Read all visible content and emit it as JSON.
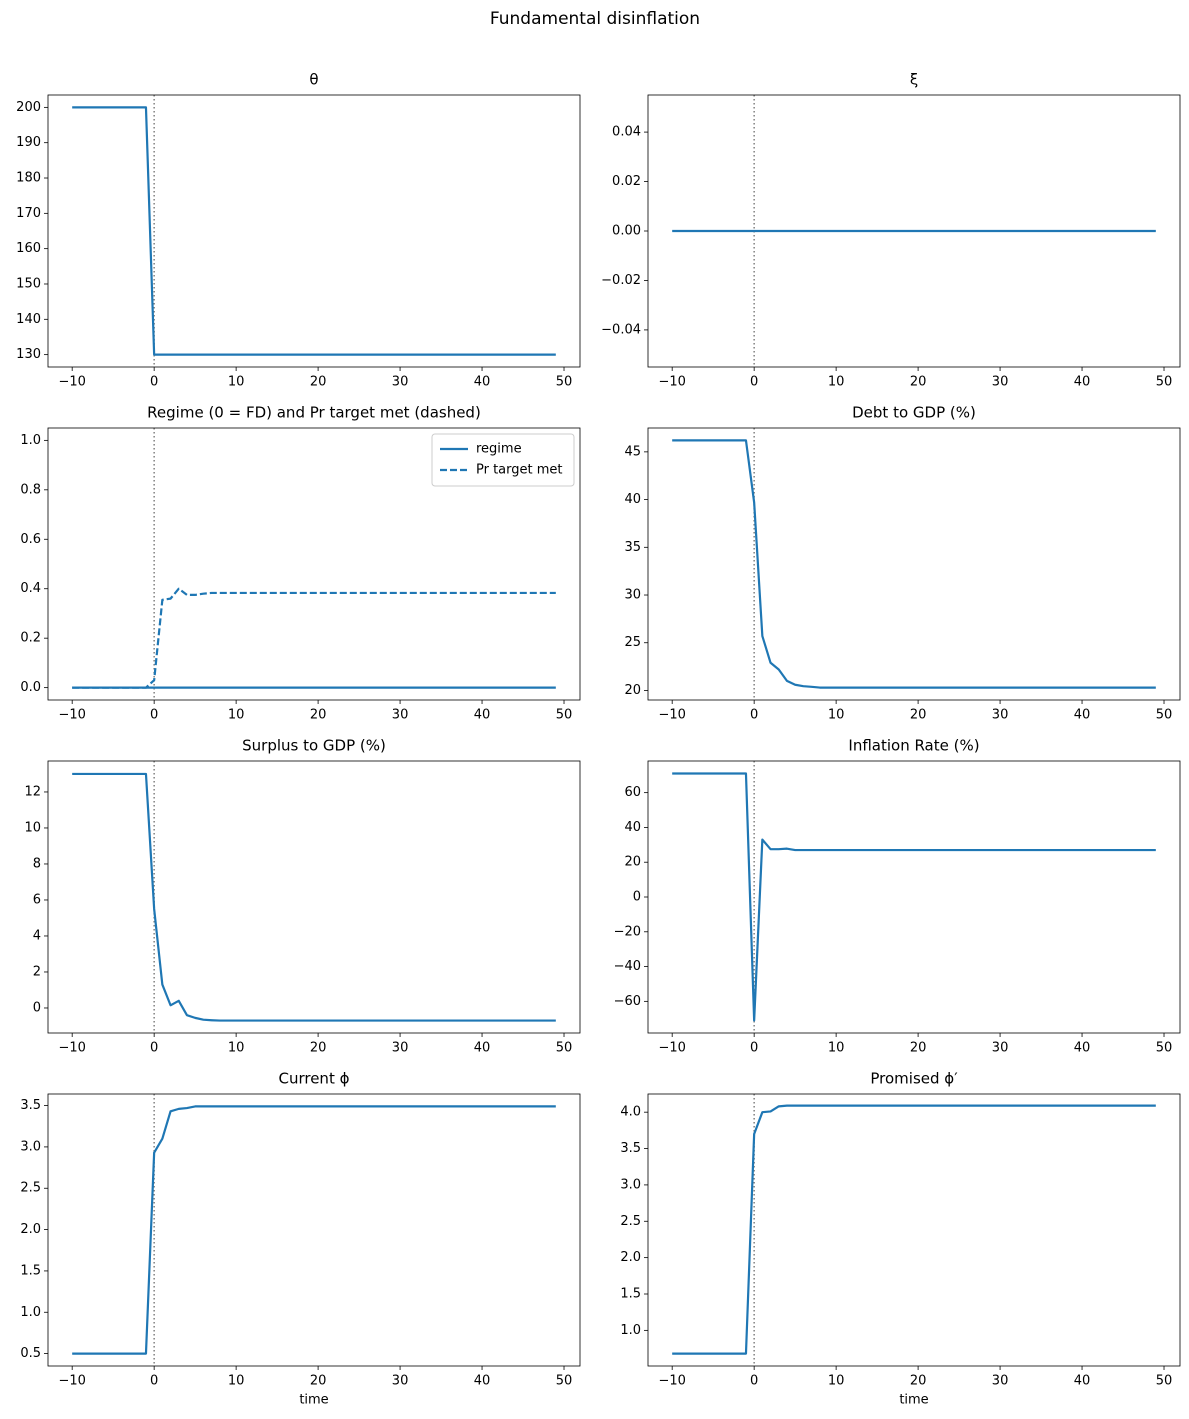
{
  "title": "Fundamental disinflation",
  "chart_data": [
    {
      "type": "line",
      "title": "θ",
      "color": "#1f77b4",
      "vline": 0,
      "x": [
        -10,
        -9,
        -8,
        -7,
        -6,
        -5,
        -4,
        -3,
        -2,
        -1,
        0,
        1,
        2,
        3,
        4,
        5,
        6,
        7,
        8,
        9,
        10,
        11,
        12,
        13,
        14,
        15,
        16,
        17,
        18,
        19,
        20,
        21,
        22,
        23,
        24,
        25,
        26,
        27,
        28,
        29,
        30,
        31,
        32,
        33,
        34,
        35,
        36,
        37,
        38,
        39,
        40,
        41,
        42,
        43,
        44,
        45,
        46,
        47,
        48,
        49
      ],
      "values": [
        200,
        200,
        200,
        200,
        200,
        200,
        200,
        200,
        200,
        200,
        130,
        130,
        130,
        130,
        130,
        130,
        130,
        130,
        130,
        130,
        130,
        130,
        130,
        130,
        130,
        130,
        130,
        130,
        130,
        130,
        130,
        130,
        130,
        130,
        130,
        130,
        130,
        130,
        130,
        130,
        130,
        130,
        130,
        130,
        130,
        130,
        130,
        130,
        130,
        130,
        130,
        130,
        130,
        130,
        130,
        130,
        130,
        130,
        130,
        130
      ],
      "xlim": [
        -12.95,
        51.95
      ],
      "xticks": [
        {
          "value": -10,
          "label": "−10"
        },
        0,
        10,
        20,
        30,
        40,
        50
      ],
      "ylim": [
        126.5,
        203.5
      ],
      "yticks": [
        130,
        140,
        150,
        160,
        170,
        180,
        190,
        200
      ]
    },
    {
      "type": "line",
      "title": "ξ",
      "color": "#1f77b4",
      "vline": 0,
      "x": [
        -10,
        -9,
        -8,
        -7,
        -6,
        -5,
        -4,
        -3,
        -2,
        -1,
        0,
        1,
        2,
        3,
        4,
        5,
        6,
        7,
        8,
        9,
        10,
        11,
        12,
        13,
        14,
        15,
        16,
        17,
        18,
        19,
        20,
        21,
        22,
        23,
        24,
        25,
        26,
        27,
        28,
        29,
        30,
        31,
        32,
        33,
        34,
        35,
        36,
        37,
        38,
        39,
        40,
        41,
        42,
        43,
        44,
        45,
        46,
        47,
        48,
        49
      ],
      "values": [
        0,
        0,
        0,
        0,
        0,
        0,
        0,
        0,
        0,
        0,
        0,
        0,
        0,
        0,
        0,
        0,
        0,
        0,
        0,
        0,
        0,
        0,
        0,
        0,
        0,
        0,
        0,
        0,
        0,
        0,
        0,
        0,
        0,
        0,
        0,
        0,
        0,
        0,
        0,
        0,
        0,
        0,
        0,
        0,
        0,
        0,
        0,
        0,
        0,
        0,
        0,
        0,
        0,
        0,
        0,
        0,
        0,
        0,
        0,
        0
      ],
      "xlim": [
        -12.95,
        51.95
      ],
      "xticks": [
        {
          "value": -10,
          "label": "−10"
        },
        0,
        10,
        20,
        30,
        40,
        50
      ],
      "ylim": [
        -0.055,
        0.055
      ],
      "yticks": [
        {
          "value": -0.04,
          "label": "−0.04"
        },
        {
          "value": -0.02,
          "label": "−0.02"
        },
        {
          "value": 0,
          "label": "0.00"
        },
        0.02,
        0.04
      ]
    },
    {
      "type": "line",
      "title": "Regime (0 = FD) and Pr target met (dashed)",
      "vline": 0,
      "legend": "upper right",
      "x": [
        -10,
        -9,
        -8,
        -7,
        -6,
        -5,
        -4,
        -3,
        -2,
        -1,
        0,
        1,
        2,
        3,
        4,
        5,
        6,
        7,
        8,
        9,
        10,
        11,
        12,
        13,
        14,
        15,
        16,
        17,
        18,
        19,
        20,
        21,
        22,
        23,
        24,
        25,
        26,
        27,
        28,
        29,
        30,
        31,
        32,
        33,
        34,
        35,
        36,
        37,
        38,
        39,
        40,
        41,
        42,
        43,
        44,
        45,
        46,
        47,
        48,
        49
      ],
      "series": [
        {
          "name": "regime",
          "color": "#1f77b4",
          "dash": false,
          "values": [
            0,
            0,
            0,
            0,
            0,
            0,
            0,
            0,
            0,
            0,
            0,
            0,
            0,
            0,
            0,
            0,
            0,
            0,
            0,
            0,
            0,
            0,
            0,
            0,
            0,
            0,
            0,
            0,
            0,
            0,
            0,
            0,
            0,
            0,
            0,
            0,
            0,
            0,
            0,
            0,
            0,
            0,
            0,
            0,
            0,
            0,
            0,
            0,
            0,
            0,
            0,
            0,
            0,
            0,
            0,
            0,
            0,
            0,
            0,
            0
          ]
        },
        {
          "name": "Pr target met",
          "color": "#1f77b4",
          "dash": true,
          "values": [
            0,
            0,
            0,
            0,
            0,
            0,
            0,
            0,
            0,
            0,
            0.03,
            0.355,
            0.36,
            0.4,
            0.375,
            0.375,
            0.38,
            0.383,
            0.383,
            0.383,
            0.383,
            0.383,
            0.383,
            0.383,
            0.383,
            0.383,
            0.383,
            0.383,
            0.383,
            0.383,
            0.383,
            0.383,
            0.383,
            0.383,
            0.383,
            0.383,
            0.383,
            0.383,
            0.383,
            0.383,
            0.383,
            0.383,
            0.383,
            0.383,
            0.383,
            0.383,
            0.383,
            0.383,
            0.383,
            0.383,
            0.383,
            0.383,
            0.383,
            0.383,
            0.383,
            0.383,
            0.383,
            0.383,
            0.383,
            0.383
          ]
        }
      ],
      "xlim": [
        -12.95,
        51.95
      ],
      "xticks": [
        {
          "value": -10,
          "label": "−10"
        },
        0,
        10,
        20,
        30,
        40,
        50
      ],
      "ylim": [
        -0.05,
        1.05
      ],
      "yticks": [
        {
          "value": 0,
          "label": "0.0"
        },
        0.2,
        0.4,
        0.6,
        0.8,
        {
          "value": 1,
          "label": "1.0"
        }
      ]
    },
    {
      "type": "line",
      "title": "Debt to GDP (%)",
      "color": "#1f77b4",
      "vline": 0,
      "x": [
        -10,
        -9,
        -8,
        -7,
        -6,
        -5,
        -4,
        -3,
        -2,
        -1,
        0,
        1,
        2,
        3,
        4,
        5,
        6,
        7,
        8,
        9,
        10,
        11,
        12,
        13,
        14,
        15,
        16,
        17,
        18,
        19,
        20,
        21,
        22,
        23,
        24,
        25,
        26,
        27,
        28,
        29,
        30,
        31,
        32,
        33,
        34,
        35,
        36,
        37,
        38,
        39,
        40,
        41,
        42,
        43,
        44,
        45,
        46,
        47,
        48,
        49
      ],
      "values": [
        46.2,
        46.2,
        46.2,
        46.2,
        46.2,
        46.2,
        46.2,
        46.2,
        46.2,
        46.2,
        39.7,
        25.7,
        22.9,
        22.2,
        21.0,
        20.6,
        20.45,
        20.38,
        20.3,
        20.3,
        20.3,
        20.3,
        20.3,
        20.3,
        20.3,
        20.3,
        20.3,
        20.3,
        20.3,
        20.3,
        20.3,
        20.3,
        20.3,
        20.3,
        20.3,
        20.3,
        20.3,
        20.3,
        20.3,
        20.3,
        20.3,
        20.3,
        20.3,
        20.3,
        20.3,
        20.3,
        20.3,
        20.3,
        20.3,
        20.3,
        20.3,
        20.3,
        20.3,
        20.3,
        20.3,
        20.3,
        20.3,
        20.3,
        20.3,
        20.3
      ],
      "xlim": [
        -12.95,
        51.95
      ],
      "xticks": [
        {
          "value": -10,
          "label": "−10"
        },
        0,
        10,
        20,
        30,
        40,
        50
      ],
      "ylim": [
        19.0,
        47.5
      ],
      "yticks": [
        20,
        25,
        30,
        35,
        40,
        45
      ]
    },
    {
      "type": "line",
      "title": "Surplus to GDP (%)",
      "color": "#1f77b4",
      "vline": 0,
      "x": [
        -10,
        -9,
        -8,
        -7,
        -6,
        -5,
        -4,
        -3,
        -2,
        -1,
        0,
        1,
        2,
        3,
        4,
        5,
        6,
        7,
        8,
        9,
        10,
        11,
        12,
        13,
        14,
        15,
        16,
        17,
        18,
        19,
        20,
        21,
        22,
        23,
        24,
        25,
        26,
        27,
        28,
        29,
        30,
        31,
        32,
        33,
        34,
        35,
        36,
        37,
        38,
        39,
        40,
        41,
        42,
        43,
        44,
        45,
        46,
        47,
        48,
        49
      ],
      "values": [
        13,
        13,
        13,
        13,
        13,
        13,
        13,
        13,
        13,
        13,
        5.5,
        1.3,
        0.15,
        0.4,
        -0.4,
        -0.55,
        -0.65,
        -0.68,
        -0.7,
        -0.7,
        -0.7,
        -0.7,
        -0.7,
        -0.7,
        -0.7,
        -0.7,
        -0.7,
        -0.7,
        -0.7,
        -0.7,
        -0.7,
        -0.7,
        -0.7,
        -0.7,
        -0.7,
        -0.7,
        -0.7,
        -0.7,
        -0.7,
        -0.7,
        -0.7,
        -0.7,
        -0.7,
        -0.7,
        -0.7,
        -0.7,
        -0.7,
        -0.7,
        -0.7,
        -0.7,
        -0.7,
        -0.7,
        -0.7,
        -0.7,
        -0.7,
        -0.7,
        -0.7,
        -0.7,
        -0.7,
        -0.7
      ],
      "xlim": [
        -12.95,
        51.95
      ],
      "xticks": [
        {
          "value": -10,
          "label": "−10"
        },
        0,
        10,
        20,
        30,
        40,
        50
      ],
      "ylim": [
        -1.39,
        13.72
      ],
      "yticks": [
        0,
        2,
        4,
        6,
        8,
        10,
        12
      ]
    },
    {
      "type": "line",
      "title": "Inflation Rate (%)",
      "color": "#1f77b4",
      "vline": 0,
      "x": [
        -10,
        -9,
        -8,
        -7,
        -6,
        -5,
        -4,
        -3,
        -2,
        -1,
        0,
        1,
        2,
        3,
        4,
        5,
        6,
        7,
        8,
        9,
        10,
        11,
        12,
        13,
        14,
        15,
        16,
        17,
        18,
        19,
        20,
        21,
        22,
        23,
        24,
        25,
        26,
        27,
        28,
        29,
        30,
        31,
        32,
        33,
        34,
        35,
        36,
        37,
        38,
        39,
        40,
        41,
        42,
        43,
        44,
        45,
        46,
        47,
        48,
        49
      ],
      "values": [
        71,
        71,
        71,
        71,
        71,
        71,
        71,
        71,
        71,
        71,
        -71,
        33,
        27.5,
        27.5,
        27.8,
        27,
        27,
        27,
        27,
        27,
        27,
        27,
        27,
        27,
        27,
        27,
        27,
        27,
        27,
        27,
        27,
        27,
        27,
        27,
        27,
        27,
        27,
        27,
        27,
        27,
        27,
        27,
        27,
        27,
        27,
        27,
        27,
        27,
        27,
        27,
        27,
        27,
        27,
        27,
        27,
        27,
        27,
        27,
        27,
        27
      ],
      "xlim": [
        -12.95,
        51.95
      ],
      "xticks": [
        {
          "value": -10,
          "label": "−10"
        },
        0,
        10,
        20,
        30,
        40,
        50
      ],
      "ylim": [
        -78.2,
        78.2
      ],
      "yticks": [
        {
          "value": -60,
          "label": "−60"
        },
        {
          "value": -40,
          "label": "−40"
        },
        {
          "value": -20,
          "label": "−20"
        },
        0,
        20,
        40,
        60
      ]
    },
    {
      "type": "line",
      "title": "Current ϕ",
      "xlabel": "time",
      "color": "#1f77b4",
      "vline": 0,
      "x": [
        -10,
        -9,
        -8,
        -7,
        -6,
        -5,
        -4,
        -3,
        -2,
        -1,
        0,
        1,
        2,
        3,
        4,
        5,
        6,
        7,
        8,
        9,
        10,
        11,
        12,
        13,
        14,
        15,
        16,
        17,
        18,
        19,
        20,
        21,
        22,
        23,
        24,
        25,
        26,
        27,
        28,
        29,
        30,
        31,
        32,
        33,
        34,
        35,
        36,
        37,
        38,
        39,
        40,
        41,
        42,
        43,
        44,
        45,
        46,
        47,
        48,
        49
      ],
      "values": [
        0.5,
        0.5,
        0.5,
        0.5,
        0.5,
        0.5,
        0.5,
        0.5,
        0.5,
        0.5,
        2.93,
        3.1,
        3.43,
        3.46,
        3.47,
        3.49,
        3.49,
        3.49,
        3.49,
        3.49,
        3.49,
        3.49,
        3.49,
        3.49,
        3.49,
        3.49,
        3.49,
        3.49,
        3.49,
        3.49,
        3.49,
        3.49,
        3.49,
        3.49,
        3.49,
        3.49,
        3.49,
        3.49,
        3.49,
        3.49,
        3.49,
        3.49,
        3.49,
        3.49,
        3.49,
        3.49,
        3.49,
        3.49,
        3.49,
        3.49,
        3.49,
        3.49,
        3.49,
        3.49,
        3.49,
        3.49,
        3.49,
        3.49,
        3.49,
        3.49
      ],
      "xlim": [
        -12.95,
        51.95
      ],
      "xticks": [
        {
          "value": -10,
          "label": "−10"
        },
        0,
        10,
        20,
        30,
        40,
        50
      ],
      "ylim": [
        0.35,
        3.64
      ],
      "yticks": [
        0.5,
        {
          "value": 1,
          "label": "1.0"
        },
        1.5,
        {
          "value": 2,
          "label": "2.0"
        },
        2.5,
        {
          "value": 3,
          "label": "3.0"
        },
        3.5
      ]
    },
    {
      "type": "line",
      "title": "Promised ϕ′",
      "xlabel": "time",
      "color": "#1f77b4",
      "vline": 0,
      "x": [
        -10,
        -9,
        -8,
        -7,
        -6,
        -5,
        -4,
        -3,
        -2,
        -1,
        0,
        1,
        2,
        3,
        4,
        5,
        6,
        7,
        8,
        9,
        10,
        11,
        12,
        13,
        14,
        15,
        16,
        17,
        18,
        19,
        20,
        21,
        22,
        23,
        24,
        25,
        26,
        27,
        28,
        29,
        30,
        31,
        32,
        33,
        34,
        35,
        36,
        37,
        38,
        39,
        40,
        41,
        42,
        43,
        44,
        45,
        46,
        47,
        48,
        49
      ],
      "values": [
        0.68,
        0.68,
        0.68,
        0.68,
        0.68,
        0.68,
        0.68,
        0.68,
        0.68,
        0.68,
        3.7,
        4.0,
        4.01,
        4.08,
        4.09,
        4.09,
        4.09,
        4.09,
        4.09,
        4.09,
        4.09,
        4.09,
        4.09,
        4.09,
        4.09,
        4.09,
        4.09,
        4.09,
        4.09,
        4.09,
        4.09,
        4.09,
        4.09,
        4.09,
        4.09,
        4.09,
        4.09,
        4.09,
        4.09,
        4.09,
        4.09,
        4.09,
        4.09,
        4.09,
        4.09,
        4.09,
        4.09,
        4.09,
        4.09,
        4.09,
        4.09,
        4.09,
        4.09,
        4.09,
        4.09,
        4.09,
        4.09,
        4.09,
        4.09,
        4.09
      ],
      "xlim": [
        -12.95,
        51.95
      ],
      "xticks": [
        {
          "value": -10,
          "label": "−10"
        },
        0,
        10,
        20,
        30,
        40,
        50
      ],
      "ylim": [
        0.51,
        4.25
      ],
      "yticks": [
        {
          "value": 1,
          "label": "1.0"
        },
        1.5,
        {
          "value": 2,
          "label": "2.0"
        },
        2.5,
        {
          "value": 3,
          "label": "3.0"
        },
        3.5,
        {
          "value": 4,
          "label": "4.0"
        }
      ]
    }
  ]
}
